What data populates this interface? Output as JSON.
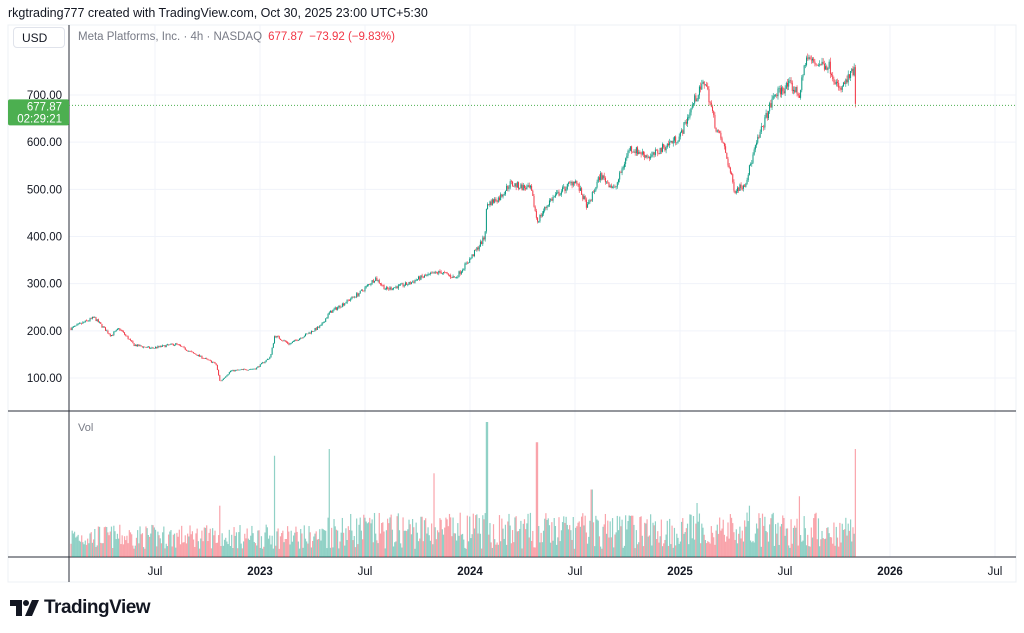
{
  "header": {
    "caption": "rkgtrading777 created with TradingView.com, Oct 30, 2025 23:00 UTC+5:30"
  },
  "currency": "USD",
  "legend": {
    "symbol": "Meta Platforms, Inc. · 4h · NASDAQ",
    "price": "677.87",
    "change": "−73.92 (−9.83%)"
  },
  "last_price_label": {
    "price": "677.87",
    "countdown": "02:29:21"
  },
  "volume_label": "Vol",
  "brand": "TradingView",
  "colors": {
    "up": "#089981",
    "down": "#f23645",
    "label": "#4caf50"
  },
  "chart_data": {
    "type": "candlestick",
    "title": "Meta Platforms, Inc. · 4h · NASDAQ",
    "ylim": [
      30,
      800
    ],
    "y_ticks": [
      "700.00",
      "600.00",
      "500.00",
      "400.00",
      "300.00",
      "200.00",
      "100.00"
    ],
    "y_tick_values": [
      700,
      600,
      500,
      400,
      300,
      200,
      100
    ],
    "x_ticks": [
      "Jul",
      "2023",
      "Jul",
      "2024",
      "Jul",
      "2025",
      "Jul",
      "2026",
      "Jul"
    ],
    "x_tick_values": [
      2022.5,
      2023,
      2023.5,
      2024,
      2024.5,
      2025,
      2025.5,
      2026,
      2026.5
    ],
    "xlim": [
      2022.1,
      2026.55
    ],
    "last_price": 677.87,
    "close_path": [
      [
        2022.1,
        205
      ],
      [
        2022.21,
        228
      ],
      [
        2022.29,
        190
      ],
      [
        2022.33,
        205
      ],
      [
        2022.4,
        170
      ],
      [
        2022.48,
        163
      ],
      [
        2022.6,
        172
      ],
      [
        2022.67,
        155
      ],
      [
        2022.79,
        130
      ],
      [
        2022.81,
        92
      ],
      [
        2022.86,
        115
      ],
      [
        2022.98,
        120
      ],
      [
        2023.05,
        145
      ],
      [
        2023.07,
        190
      ],
      [
        2023.14,
        172
      ],
      [
        2023.29,
        210
      ],
      [
        2023.33,
        238
      ],
      [
        2023.48,
        282
      ],
      [
        2023.55,
        312
      ],
      [
        2023.6,
        288
      ],
      [
        2023.71,
        300
      ],
      [
        2023.76,
        312
      ],
      [
        2023.86,
        325
      ],
      [
        2023.93,
        312
      ],
      [
        2024.0,
        352
      ],
      [
        2024.07,
        398
      ],
      [
        2024.08,
        468
      ],
      [
        2024.14,
        482
      ],
      [
        2024.19,
        512
      ],
      [
        2024.29,
        500
      ],
      [
        2024.32,
        432
      ],
      [
        2024.38,
        476
      ],
      [
        2024.5,
        520
      ],
      [
        2024.56,
        462
      ],
      [
        2024.62,
        530
      ],
      [
        2024.69,
        500
      ],
      [
        2024.76,
        588
      ],
      [
        2024.86,
        568
      ],
      [
        2024.93,
        592
      ],
      [
        2025.0,
        612
      ],
      [
        2025.07,
        690
      ],
      [
        2025.12,
        730
      ],
      [
        2025.17,
        632
      ],
      [
        2025.21,
        590
      ],
      [
        2025.26,
        498
      ],
      [
        2025.31,
        512
      ],
      [
        2025.36,
        590
      ],
      [
        2025.4,
        642
      ],
      [
        2025.45,
        700
      ],
      [
        2025.52,
        722
      ],
      [
        2025.57,
        700
      ],
      [
        2025.6,
        780
      ],
      [
        2025.64,
        768
      ],
      [
        2025.71,
        762
      ],
      [
        2025.76,
        708
      ],
      [
        2025.81,
        740
      ],
      [
        2025.83,
        752
      ],
      [
        2025.835,
        678
      ]
    ],
    "volume_spikes": [
      [
        2022.81,
        0.38
      ],
      [
        2023.07,
        0.75
      ],
      [
        2023.33,
        0.8
      ],
      [
        2023.83,
        0.62
      ],
      [
        2024.08,
        1.0
      ],
      [
        2024.32,
        0.85
      ],
      [
        2024.58,
        0.5
      ],
      [
        2025.08,
        0.4
      ],
      [
        2025.33,
        0.38
      ],
      [
        2025.57,
        0.45
      ],
      [
        2025.835,
        0.8
      ]
    ]
  }
}
